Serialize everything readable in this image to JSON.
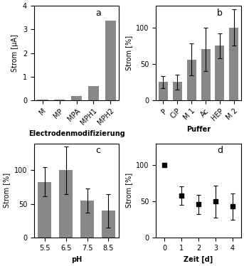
{
  "chart_data": [
    {
      "type": "bar",
      "categories": [
        "M",
        "MP",
        "MPA",
        "MPH1",
        "MPH2"
      ],
      "values": [
        0.02,
        0.02,
        0.18,
        0.6,
        3.37
      ],
      "ylabel": "Strom [µA]",
      "xlabel": "Electrodenmodifizierung",
      "ylim": [
        0,
        4
      ],
      "yticks": [
        0,
        1,
        2,
        3,
        4
      ],
      "annotations": [
        "a"
      ],
      "color": "#888888"
    },
    {
      "type": "bar",
      "categories": [
        "P",
        "CiP",
        "M 1",
        "Ac",
        "HEP",
        "M 2"
      ],
      "values": [
        25,
        25,
        56,
        70,
        75,
        100
      ],
      "errors": [
        8,
        10,
        22,
        30,
        17,
        25
      ],
      "ylabel": "Strom [%]",
      "xlabel": "Puffer",
      "ylim": [
        0,
        130
      ],
      "yticks": [
        0,
        50,
        100
      ],
      "annotations": [
        "b"
      ],
      "color": "#888888"
    },
    {
      "type": "bar",
      "categories": [
        "5.5",
        "6.5",
        "7.5",
        "8.5"
      ],
      "values": [
        83,
        100,
        55,
        40
      ],
      "errors": [
        22,
        35,
        18,
        25
      ],
      "ylabel": "Strom [%]",
      "xlabel": "pH",
      "ylim": [
        0,
        140
      ],
      "yticks": [
        0,
        50,
        100
      ],
      "annotations": [
        "c"
      ],
      "color": "#888888"
    },
    {
      "type": "scatter",
      "x": [
        0,
        1,
        2,
        3,
        4
      ],
      "values": [
        100,
        58,
        46,
        50,
        43
      ],
      "errors": [
        3,
        13,
        13,
        22,
        18
      ],
      "ylabel": "Strom [%]",
      "xlabel": "Zeit [d]",
      "xlim": [
        -0.5,
        4.5
      ],
      "xticks": [
        0,
        1,
        2,
        3,
        4
      ],
      "ylim": [
        0,
        130
      ],
      "yticks": [
        0,
        50,
        100
      ],
      "annotations": [
        "d"
      ],
      "color": "#000000",
      "marker": "square"
    }
  ]
}
